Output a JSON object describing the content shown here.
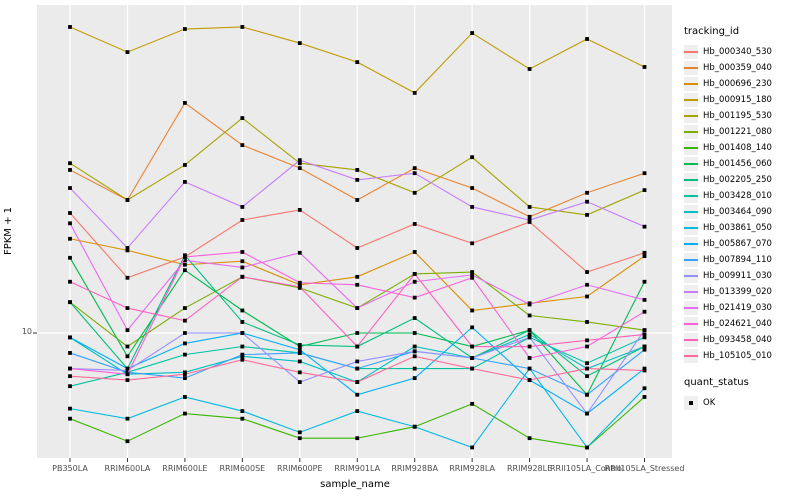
{
  "figure": {
    "x_axis_title": "sample_name",
    "y_axis_title": "FPKM + 1",
    "y_tick_label": "10",
    "panel_bg": "#ebebeb",
    "gridline_color": "#ffffff",
    "axis_text_color": "#4d4d4d",
    "marker_color": "#000000"
  },
  "legend": {
    "tracking_title": "tracking_id",
    "quant_title": "quant_status",
    "quant_items": [
      {
        "label": "OK",
        "shape": "black-square"
      }
    ]
  },
  "chart_data": {
    "type": "line",
    "title": "",
    "xlabel": "sample_name",
    "ylabel": "FPKM + 1",
    "yscale": "log10",
    "y_major_break": 10,
    "ylim_approx": [
      4.2,
      98
    ],
    "grid": "major-only",
    "legend_position": "right",
    "marker": "black-square",
    "categories": [
      "PB350LA",
      "RRIM600LA",
      "RRIM600LE",
      "RRIM600SE",
      "RRIM600PE",
      "RRIM901LA",
      "RRIM928BA",
      "RRIM928LA",
      "RRIM928LE",
      "RRII105LA_Control",
      "RRII105LA_Stressed"
    ],
    "series": [
      {
        "name": "Hb_000340_530",
        "color": "#F8766D",
        "values": [
          23.1,
          14.7,
          17.0,
          22.0,
          23.6,
          18.1,
          21.4,
          18.7,
          21.7,
          15.3,
          17.5
        ]
      },
      {
        "name": "Hb_000359_040",
        "color": "#EA8331",
        "values": [
          31.2,
          25.3,
          49.8,
          37.1,
          31.6,
          25.3,
          31.6,
          27.5,
          22.5,
          26.6,
          30.5
        ]
      },
      {
        "name": "Hb_000696_230",
        "color": "#D89000",
        "values": [
          19.3,
          17.8,
          16.1,
          16.5,
          14.0,
          14.8,
          17.6,
          11.7,
          12.3,
          12.9,
          17.1
        ]
      },
      {
        "name": "Hb_000915_180",
        "color": "#C09B00",
        "values": [
          84.6,
          71.0,
          83.4,
          84.6,
          75.6,
          66.2,
          53.4,
          81.1,
          63.1,
          77.8,
          64.0
        ]
      },
      {
        "name": "Hb_001195_530",
        "color": "#A3A500",
        "values": [
          32.7,
          25.3,
          32.3,
          44.8,
          32.7,
          31.2,
          26.6,
          34.1,
          24.1,
          22.8,
          27.1
        ]
      },
      {
        "name": "Hb_001221_080",
        "color": "#7CAE00",
        "values": [
          12.4,
          9.1,
          11.9,
          14.8,
          13.7,
          11.9,
          15.1,
          15.3,
          11.3,
          10.8,
          10.2
        ]
      },
      {
        "name": "Hb_001408_140",
        "color": "#39B600",
        "values": [
          5.5,
          4.7,
          5.7,
          5.5,
          4.8,
          4.8,
          5.2,
          6.1,
          4.8,
          4.5,
          6.4
        ]
      },
      {
        "name": "Hb_001456_060",
        "color": "#00BB4E",
        "values": [
          16.9,
          8.5,
          15.5,
          11.7,
          9.1,
          10.0,
          10.0,
          9.1,
          10.2,
          6.5,
          14.3
        ]
      },
      {
        "name": "Hb_002205_250",
        "color": "#00BF7D",
        "values": [
          12.4,
          7.8,
          17.2,
          10.8,
          9.2,
          9.1,
          11.1,
          8.4,
          10.2,
          7.4,
          9.1
        ]
      },
      {
        "name": "Hb_003428_010",
        "color": "#00C1A3",
        "values": [
          6.9,
          7.6,
          8.6,
          9.1,
          8.7,
          7.8,
          7.8,
          7.8,
          9.7,
          8.1,
          9.7
        ]
      },
      {
        "name": "Hb_003464_090",
        "color": "#00BFC4",
        "values": [
          9.7,
          7.5,
          7.6,
          8.5,
          8.2,
          7.1,
          9.1,
          8.4,
          9.9,
          7.8,
          9.1
        ]
      },
      {
        "name": "Hb_003861_050",
        "color": "#00BAE0",
        "values": [
          5.9,
          5.5,
          6.4,
          5.8,
          5.0,
          5.8,
          5.2,
          4.5,
          7.8,
          4.5,
          6.8
        ]
      },
      {
        "name": "Hb_005867_070",
        "color": "#00B0F6",
        "values": [
          9.7,
          7.8,
          9.3,
          10.0,
          8.9,
          6.5,
          7.3,
          10.4,
          7.2,
          5.7,
          7.8
        ]
      },
      {
        "name": "Hb_007894_110",
        "color": "#35A2FF",
        "values": [
          8.7,
          7.6,
          7.3,
          8.6,
          8.7,
          7.8,
          8.8,
          8.4,
          7.8,
          6.5,
          8.9
        ]
      },
      {
        "name": "Hb_009911_030",
        "color": "#9590FF",
        "values": [
          7.8,
          7.7,
          10.0,
          10.0,
          7.1,
          8.2,
          8.8,
          8.4,
          9.7,
          5.7,
          10.2
        ]
      },
      {
        "name": "Hb_013399_020",
        "color": "#C77CFF",
        "values": [
          27.5,
          18.1,
          28.7,
          24.1,
          33.4,
          29.1,
          30.5,
          24.1,
          22.0,
          25.0,
          21.0
        ]
      },
      {
        "name": "Hb_021419_030",
        "color": "#E76BF3",
        "values": [
          21.5,
          10.2,
          16.6,
          15.8,
          17.5,
          11.9,
          14.3,
          15.0,
          12.2,
          14.0,
          12.6
        ]
      },
      {
        "name": "Hb_024621_040",
        "color": "#FA62DB",
        "values": [
          7.8,
          7.5,
          17.0,
          17.6,
          14.2,
          14.0,
          12.8,
          14.7,
          8.4,
          9.1,
          11.6
        ]
      },
      {
        "name": "Hb_093458_040",
        "color": "#FF62BC",
        "values": [
          14.3,
          11.9,
          10.9,
          14.8,
          13.8,
          9.1,
          15.1,
          9.1,
          9.1,
          9.5,
          9.9
        ]
      },
      {
        "name": "Hb_105105_010",
        "color": "#FF6A98",
        "values": [
          7.4,
          7.2,
          7.5,
          8.3,
          7.6,
          7.1,
          8.5,
          7.8,
          7.2,
          7.8,
          7.7
        ]
      }
    ]
  }
}
